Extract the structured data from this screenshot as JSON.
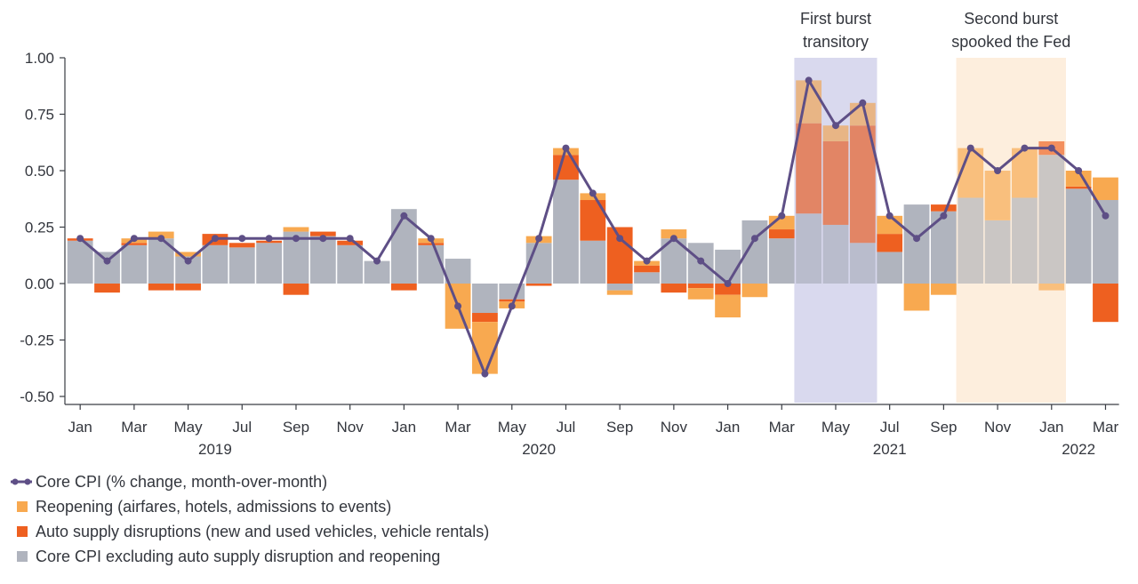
{
  "chart_data": {
    "type": "bar",
    "stacked": true,
    "title": "",
    "xlabel": "",
    "ylabel": "",
    "ylim": [
      -0.55,
      1.08
    ],
    "y_ticks": [
      1.0,
      0.75,
      0.5,
      0.25,
      0.0,
      -0.25,
      -0.5
    ],
    "y_tick_labels": [
      "1.00",
      "0.75",
      "0.50",
      "0.25",
      "0.00",
      "-0.25",
      "-0.50"
    ],
    "x": [
      "2019-01",
      "2019-02",
      "2019-03",
      "2019-04",
      "2019-05",
      "2019-06",
      "2019-07",
      "2019-08",
      "2019-09",
      "2019-10",
      "2019-11",
      "2019-12",
      "2020-01",
      "2020-02",
      "2020-03",
      "2020-04",
      "2020-05",
      "2020-06",
      "2020-07",
      "2020-08",
      "2020-09",
      "2020-10",
      "2020-11",
      "2020-12",
      "2021-01",
      "2021-02",
      "2021-03",
      "2021-04",
      "2021-05",
      "2021-06",
      "2021-07",
      "2021-08",
      "2021-09",
      "2021-10",
      "2021-11",
      "2021-12",
      "2022-01",
      "2022-02",
      "2022-03"
    ],
    "x_tick_labels": [
      "Jan",
      "Mar",
      "May",
      "Jul",
      "Sep",
      "Nov",
      "Jan",
      "Mar",
      "May",
      "Jul",
      "Sep",
      "Nov",
      "Jan",
      "Mar",
      "May",
      "Jul",
      "Sep",
      "Nov",
      "Jan",
      "Mar"
    ],
    "x_tick_positions": [
      "2019-01",
      "2019-03",
      "2019-05",
      "2019-07",
      "2019-09",
      "2019-11",
      "2020-01",
      "2020-03",
      "2020-05",
      "2020-07",
      "2020-09",
      "2020-11",
      "2021-01",
      "2021-03",
      "2021-05",
      "2021-07",
      "2021-09",
      "2021-11",
      "2022-01",
      "2022-03"
    ],
    "year_labels": [
      {
        "text": "2019",
        "at": "2019-06"
      },
      {
        "text": "2020",
        "at": "2020-06"
      },
      {
        "text": "2021",
        "at": "2021-07"
      },
      {
        "text": "2022",
        "at": "2022-02"
      }
    ],
    "series": [
      {
        "name": "Core CPI excluding auto supply disruption and reopening",
        "kind": "bar",
        "color": "#b0b4be",
        "values": [
          0.19,
          0.14,
          0.17,
          0.2,
          0.12,
          0.17,
          0.16,
          0.18,
          0.23,
          0.21,
          0.17,
          0.1,
          0.33,
          0.17,
          0.11,
          -0.13,
          -0.07,
          0.18,
          0.46,
          0.19,
          -0.03,
          0.05,
          0.2,
          0.18,
          0.15,
          0.28,
          0.2,
          0.31,
          0.26,
          0.18,
          0.14,
          0.35,
          0.32,
          0.38,
          0.28,
          0.38,
          0.57,
          0.42,
          0.37
        ]
      },
      {
        "name": "Auto supply disruptions (new and used vehicles, vehicle rentals)",
        "kind": "bar",
        "color": "#ee6020",
        "values": [
          0.01,
          -0.04,
          0.01,
          -0.03,
          -0.03,
          0.05,
          0.02,
          0.01,
          -0.05,
          0.02,
          0.02,
          0.0,
          -0.03,
          0.01,
          0.0,
          -0.04,
          -0.01,
          -0.01,
          0.11,
          0.18,
          0.25,
          0.03,
          -0.04,
          -0.02,
          -0.05,
          0.0,
          0.04,
          0.4,
          0.37,
          0.52,
          0.08,
          0.0,
          0.03,
          0.0,
          0.0,
          0.0,
          0.06,
          0.01,
          -0.17
        ]
      },
      {
        "name": "Reopening (airfares, hotels, admissions to events)",
        "kind": "bar",
        "color": "#f8a950",
        "values": [
          0.0,
          0.0,
          0.02,
          0.03,
          0.02,
          0.0,
          0.0,
          0.0,
          0.02,
          0.0,
          0.0,
          0.0,
          0.0,
          0.02,
          -0.2,
          -0.23,
          -0.03,
          0.03,
          0.03,
          0.03,
          -0.02,
          0.02,
          0.04,
          -0.05,
          -0.1,
          -0.06,
          0.06,
          0.19,
          0.07,
          0.1,
          0.08,
          -0.12,
          -0.05,
          0.22,
          0.22,
          0.22,
          -0.03,
          0.07,
          0.1
        ]
      },
      {
        "name": "Core CPI (% change, month-over-month)",
        "kind": "line",
        "color": "#5e4f86",
        "values": [
          0.2,
          0.1,
          0.2,
          0.2,
          0.1,
          0.2,
          0.2,
          0.2,
          0.2,
          0.2,
          0.2,
          0.1,
          0.3,
          0.2,
          -0.1,
          -0.4,
          -0.1,
          0.2,
          0.6,
          0.4,
          0.2,
          0.1,
          0.2,
          0.1,
          0.0,
          0.2,
          0.3,
          0.9,
          0.7,
          0.8,
          0.3,
          0.2,
          0.3,
          0.6,
          0.5,
          0.6,
          0.6,
          0.5,
          0.3
        ]
      }
    ],
    "shaded_regions": [
      {
        "from": "2021-04",
        "to": "2021-07",
        "color": "#cccbe8",
        "label": [
          "First burst",
          "transitory"
        ]
      },
      {
        "from": "2021-10",
        "to": "2022-02",
        "color": "#fde8d2",
        "label": [
          "Second burst",
          "spooked the Fed"
        ]
      }
    ],
    "legend": {
      "placement": "bottom-left",
      "entries": [
        {
          "label": "Core CPI (% change, month-over-month)",
          "series": 3,
          "marker": "line"
        },
        {
          "label": "Reopening (airfares, hotels, admissions to events)",
          "series": 2,
          "marker": "square"
        },
        {
          "label": "Auto supply disruptions (new and used vehicles, vehicle rentals)",
          "series": 1,
          "marker": "square"
        },
        {
          "label": "Core CPI excluding auto supply disruption and reopening",
          "series": 0,
          "marker": "square"
        }
      ]
    },
    "grid": false,
    "axis_color": "#3a3d44"
  }
}
